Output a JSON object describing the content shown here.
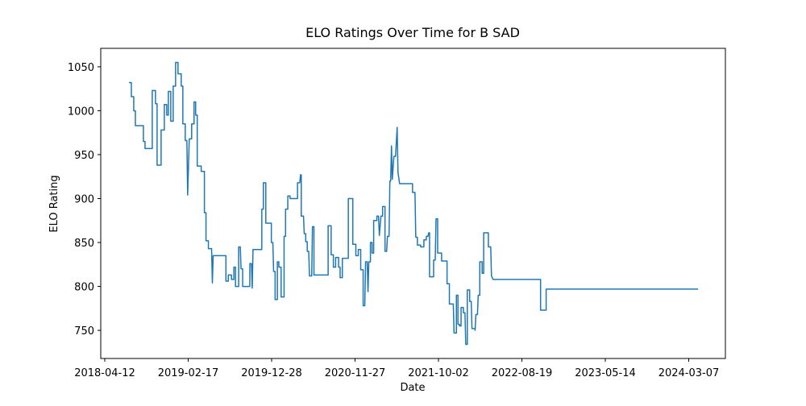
{
  "chart_data": {
    "type": "line",
    "title": "ELO Ratings Over Time for B SAD",
    "x_label": "Date",
    "y_label": "ELO Rating",
    "color": "#1f77b4",
    "xlim": [
      "2018-03-28",
      "2024-07-23"
    ],
    "xticks": [
      "2018-04-12",
      "2019-02-17",
      "2019-12-28",
      "2020-11-27",
      "2021-10-02",
      "2022-08-19",
      "2023-05-14",
      "2024-03-07"
    ],
    "ylim": [
      718,
      1071
    ],
    "yticks": [
      750,
      800,
      850,
      900,
      950,
      1000,
      1050
    ],
    "x": [
      "2018-07-11",
      "2018-07-20",
      "2018-07-20",
      "2018-07-29",
      "2018-07-29",
      "2018-08-04",
      "2018-08-04",
      "2018-09-03",
      "2018-09-03",
      "2018-09-09",
      "2018-09-09",
      "2018-10-06",
      "2018-10-06",
      "2018-10-18",
      "2018-10-18",
      "2018-10-24",
      "2018-10-24",
      "2018-11-08",
      "2018-11-08",
      "2018-11-20",
      "2018-11-20",
      "2018-11-29",
      "2018-11-29",
      "2018-12-05",
      "2018-12-05",
      "2018-12-14",
      "2018-12-14",
      "2018-12-23",
      "2018-12-23",
      "2019-01-01",
      "2019-01-01",
      "2019-01-10",
      "2019-01-10",
      "2019-01-22",
      "2019-01-22",
      "2019-01-28",
      "2019-01-28",
      "2019-02-06",
      "2019-02-06",
      "2019-02-12",
      "2019-02-15",
      "2019-02-21",
      "2019-03-02",
      "2019-03-02",
      "2019-03-11",
      "2019-03-11",
      "2019-03-17",
      "2019-03-17",
      "2019-03-23",
      "2019-03-23",
      "2019-04-07",
      "2019-04-07",
      "2019-04-19",
      "2019-04-19",
      "2019-04-25",
      "2019-04-25",
      "2019-05-04",
      "2019-05-04",
      "2019-05-16",
      "2019-05-19",
      "2019-05-22",
      "2019-07-09",
      "2019-07-09",
      "2019-07-18",
      "2019-07-18",
      "2019-07-30",
      "2019-07-30",
      "2019-08-08",
      "2019-08-08",
      "2019-08-14",
      "2019-08-14",
      "2019-08-26",
      "2019-08-26",
      "2019-09-01",
      "2019-09-04",
      "2019-09-10",
      "2019-09-10",
      "2019-10-07",
      "2019-10-07",
      "2019-10-13",
      "2019-10-16",
      "2019-10-19",
      "2019-11-21",
      "2019-11-21",
      "2019-11-27",
      "2019-11-27",
      "2019-12-06",
      "2019-12-06",
      "2019-12-27",
      "2019-12-27",
      "2020-01-02",
      "2020-01-05",
      "2020-01-11",
      "2020-01-11",
      "2020-01-20",
      "2020-01-20",
      "2020-01-26",
      "2020-01-26",
      "2020-02-04",
      "2020-02-04",
      "2020-02-16",
      "2020-02-16",
      "2020-02-22",
      "2020-02-22",
      "2020-03-02",
      "2020-03-02",
      "2020-03-11",
      "2020-03-11",
      "2020-04-10",
      "2020-04-10",
      "2020-04-19",
      "2020-04-22",
      "2020-04-25",
      "2020-04-25",
      "2020-05-04",
      "2020-05-07",
      "2020-05-13",
      "2020-05-13",
      "2020-05-19",
      "2020-05-19",
      "2020-05-25",
      "2020-05-28",
      "2020-06-06",
      "2020-06-09",
      "2020-06-15",
      "2020-06-15",
      "2020-08-11",
      "2020-08-11",
      "2020-08-23",
      "2020-08-23",
      "2020-09-01",
      "2020-09-01",
      "2020-09-10",
      "2020-09-10",
      "2020-09-22",
      "2020-09-22",
      "2020-09-28",
      "2020-09-28",
      "2020-10-07",
      "2020-10-07",
      "2020-10-31",
      "2020-10-31",
      "2020-11-18",
      "2020-11-18",
      "2020-11-30",
      "2020-11-30",
      "2020-12-09",
      "2020-12-09",
      "2020-12-18",
      "2020-12-18",
      "2020-12-27",
      "2020-12-27",
      "2021-01-02",
      "2021-01-05",
      "2021-01-11",
      "2021-01-14",
      "2021-01-17",
      "2021-01-23",
      "2021-01-23",
      "2021-01-29",
      "2021-01-29",
      "2021-02-04",
      "2021-02-04",
      "2021-02-16",
      "2021-02-16",
      "2021-02-22",
      "2021-02-25",
      "2021-03-03",
      "2021-03-09",
      "2021-03-09",
      "2021-03-18",
      "2021-03-18",
      "2021-03-24",
      "2021-03-27",
      "2021-04-02",
      "2021-04-05",
      "2021-04-08",
      "2021-04-11",
      "2021-04-14",
      "2021-04-20",
      "2021-04-26",
      "2021-05-02",
      "2021-05-05",
      "2021-05-11",
      "2021-06-28",
      "2021-06-28",
      "2021-07-07",
      "2021-07-10",
      "2021-07-16",
      "2021-07-16",
      "2021-07-28",
      "2021-07-28",
      "2021-08-09",
      "2021-08-09",
      "2021-08-18",
      "2021-08-18",
      "2021-08-24",
      "2021-08-27",
      "2021-08-30",
      "2021-08-30",
      "2021-09-14",
      "2021-09-14",
      "2021-09-20",
      "2021-09-23",
      "2021-09-29",
      "2021-09-29",
      "2021-10-14",
      "2021-10-14",
      "2021-11-04",
      "2021-11-04",
      "2021-11-13",
      "2021-11-13",
      "2021-11-28",
      "2021-12-01",
      "2021-12-10",
      "2021-12-10",
      "2021-12-16",
      "2021-12-16",
      "2021-12-22",
      "2021-12-22",
      "2021-12-28",
      "2021-12-28",
      "2022-01-06",
      "2022-01-06",
      "2022-01-12",
      "2022-01-15",
      "2022-01-21",
      "2022-01-21",
      "2022-01-30",
      "2022-01-30",
      "2022-02-05",
      "2022-02-08",
      "2022-02-20",
      "2022-02-20",
      "2022-02-23",
      "2022-03-01",
      "2022-03-04",
      "2022-03-10",
      "2022-03-10",
      "2022-03-19",
      "2022-03-19",
      "2022-03-25",
      "2022-03-25",
      "2022-04-12",
      "2022-04-12",
      "2022-04-21",
      "2022-04-24",
      "2022-04-30",
      "2022-10-18",
      "2022-10-18",
      "2022-11-05",
      "2022-11-05",
      "2024-04-11"
    ],
    "values": [
      1032,
      1032,
      1016,
      1016,
      1000,
      1000,
      983,
      983,
      965,
      965,
      957,
      957,
      1023,
      1023,
      1008,
      1008,
      938,
      938,
      978,
      978,
      1007,
      1007,
      995,
      995,
      1022,
      1022,
      988,
      988,
      1028,
      1028,
      1055,
      1055,
      1042,
      1042,
      1028,
      1028,
      985,
      985,
      966,
      966,
      904,
      968,
      968,
      985,
      985,
      1010,
      1010,
      995,
      995,
      937,
      937,
      931,
      931,
      884,
      884,
      852,
      852,
      843,
      843,
      804,
      835,
      835,
      806,
      806,
      813,
      813,
      808,
      808,
      822,
      822,
      800,
      800,
      845,
      845,
      820,
      820,
      800,
      800,
      826,
      826,
      798,
      842,
      842,
      888,
      888,
      918,
      918,
      872,
      872,
      850,
      850,
      817,
      817,
      785,
      785,
      828,
      828,
      822,
      822,
      788,
      788,
      857,
      857,
      888,
      888,
      903,
      903,
      900,
      900,
      918,
      918,
      927,
      927,
      880,
      880,
      860,
      860,
      851,
      851,
      840,
      840,
      812,
      812,
      868,
      868,
      813,
      813,
      869,
      869,
      836,
      836,
      822,
      822,
      833,
      833,
      822,
      822,
      810,
      810,
      832,
      832,
      900,
      900,
      848,
      848,
      835,
      835,
      842,
      842,
      819,
      819,
      778,
      778,
      828,
      828,
      794,
      828,
      828,
      850,
      850,
      838,
      838,
      875,
      875,
      880,
      880,
      858,
      880,
      880,
      891,
      891,
      840,
      840,
      857,
      857,
      920,
      920,
      960,
      922,
      948,
      948,
      981,
      930,
      917,
      917,
      907,
      907,
      856,
      856,
      847,
      847,
      845,
      845,
      853,
      853,
      857,
      857,
      861,
      861,
      811,
      811,
      830,
      830,
      877,
      877,
      838,
      838,
      829,
      829,
      803,
      803,
      780,
      780,
      747,
      747,
      790,
      790,
      757,
      757,
      755,
      755,
      776,
      776,
      770,
      770,
      734,
      734,
      796,
      796,
      783,
      783,
      752,
      752,
      750,
      768,
      768,
      790,
      790,
      828,
      828,
      815,
      815,
      861,
      861,
      845,
      845,
      812,
      808,
      808,
      773,
      773,
      797,
      797
    ]
  }
}
